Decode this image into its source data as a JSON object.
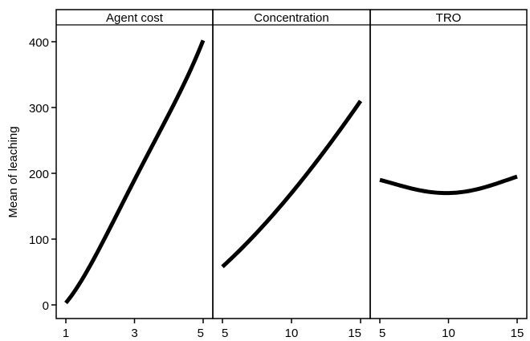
{
  "chart_data": {
    "type": "line",
    "ylabel": "Mean of leaching",
    "ylim": [
      0,
      420
    ],
    "yticks": [
      0,
      100,
      200,
      300,
      400
    ],
    "grid": false,
    "line_color": "#000000",
    "panels": [
      {
        "title": "Agent cost",
        "xlim": [
          1,
          5
        ],
        "xticks": [
          1,
          3,
          5
        ],
        "x": [
          1,
          2,
          3,
          4,
          5
        ],
        "y": [
          3,
          88,
          190,
          290,
          402
        ]
      },
      {
        "title": "Concentration",
        "xlim": [
          5,
          15
        ],
        "xticks": [
          5,
          10,
          15
        ],
        "x": [
          5,
          7.5,
          10,
          12.5,
          15
        ],
        "y": [
          58,
          110,
          170,
          237,
          310
        ]
      },
      {
        "title": "TRO",
        "xlim": [
          5,
          15
        ],
        "xticks": [
          5,
          10,
          15
        ],
        "x": [
          5,
          7.5,
          10,
          12.5,
          15
        ],
        "y": [
          190,
          176,
          170,
          178,
          195
        ]
      }
    ]
  }
}
